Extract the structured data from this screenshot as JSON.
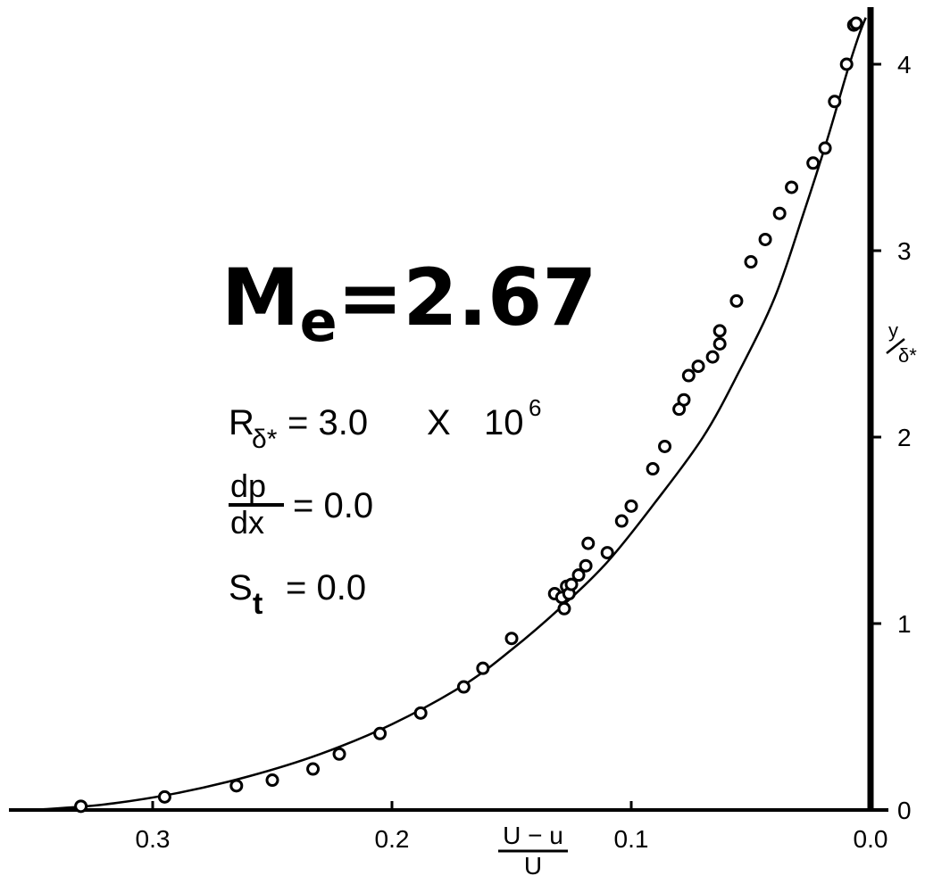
{
  "chart_data": {
    "type": "scatter",
    "title": "Me=2.67",
    "title_parts": {
      "main": "M",
      "sub": "e",
      "rest": "=2.67"
    },
    "xlabel": {
      "numerator": "U − u",
      "denominator": "U"
    },
    "ylabel": {
      "numerator": "y",
      "denominator": "δ*"
    },
    "x_reversed": true,
    "xlim": [
      0.0,
      0.36
    ],
    "ylim": [
      0.0,
      4.25
    ],
    "x_ticks": [
      0.3,
      0.2,
      0.1,
      0.0
    ],
    "x_tick_labels": [
      "0.3",
      "0.2",
      "0.1",
      "0.0"
    ],
    "y_ticks": [
      0,
      1,
      2,
      3,
      4
    ],
    "y_tick_labels": [
      "0",
      "1",
      "2",
      "3",
      "4"
    ],
    "grid": false,
    "annotations": {
      "reynolds": {
        "symbol": "R",
        "subscript": "δ*",
        "value": "= 3.0",
        "times": "X",
        "base": "10",
        "exponent": "6"
      },
      "pressure_gradient": {
        "numerator": "dp",
        "denominator": "dx",
        "value": "= 0.0"
      },
      "st": {
        "symbol": "S",
        "subscript": "t",
        "value": "= 0.0"
      }
    },
    "series": [
      {
        "style": "open-circle",
        "x": [
          0.33,
          0.295,
          0.265,
          0.25,
          0.233,
          0.222,
          0.205,
          0.188,
          0.17,
          0.162,
          0.15,
          0.132,
          0.129,
          0.128,
          0.127,
          0.126,
          0.125,
          0.122,
          0.119,
          0.118,
          0.11,
          0.104,
          0.1,
          0.091,
          0.086,
          0.08,
          0.078,
          0.076,
          0.072,
          0.066,
          0.063,
          0.063,
          0.056,
          0.05,
          0.044,
          0.038,
          0.033,
          0.024,
          0.019,
          0.015,
          0.01,
          0.007,
          0.006
        ],
        "y": [
          0.02,
          0.07,
          0.13,
          0.16,
          0.22,
          0.3,
          0.41,
          0.52,
          0.66,
          0.76,
          0.92,
          1.16,
          1.14,
          1.08,
          1.2,
          1.16,
          1.21,
          1.26,
          1.31,
          1.43,
          1.38,
          1.55,
          1.63,
          1.83,
          1.95,
          2.15,
          2.2,
          2.33,
          2.38,
          2.43,
          2.57,
          2.5,
          2.73,
          2.94,
          3.06,
          3.2,
          3.34,
          3.47,
          3.55,
          3.8,
          4.0,
          4.21,
          4.22
        ]
      },
      {
        "style": "line",
        "x": [
          0.35,
          0.32,
          0.29,
          0.26,
          0.23,
          0.2,
          0.17,
          0.15,
          0.13,
          0.11,
          0.09,
          0.07,
          0.055,
          0.04,
          0.028,
          0.018,
          0.01,
          0.005,
          0.002
        ],
        "y": [
          0.0,
          0.03,
          0.09,
          0.18,
          0.3,
          0.46,
          0.67,
          0.86,
          1.08,
          1.33,
          1.65,
          2.0,
          2.35,
          2.75,
          3.2,
          3.6,
          3.95,
          4.15,
          4.25
        ]
      }
    ]
  }
}
